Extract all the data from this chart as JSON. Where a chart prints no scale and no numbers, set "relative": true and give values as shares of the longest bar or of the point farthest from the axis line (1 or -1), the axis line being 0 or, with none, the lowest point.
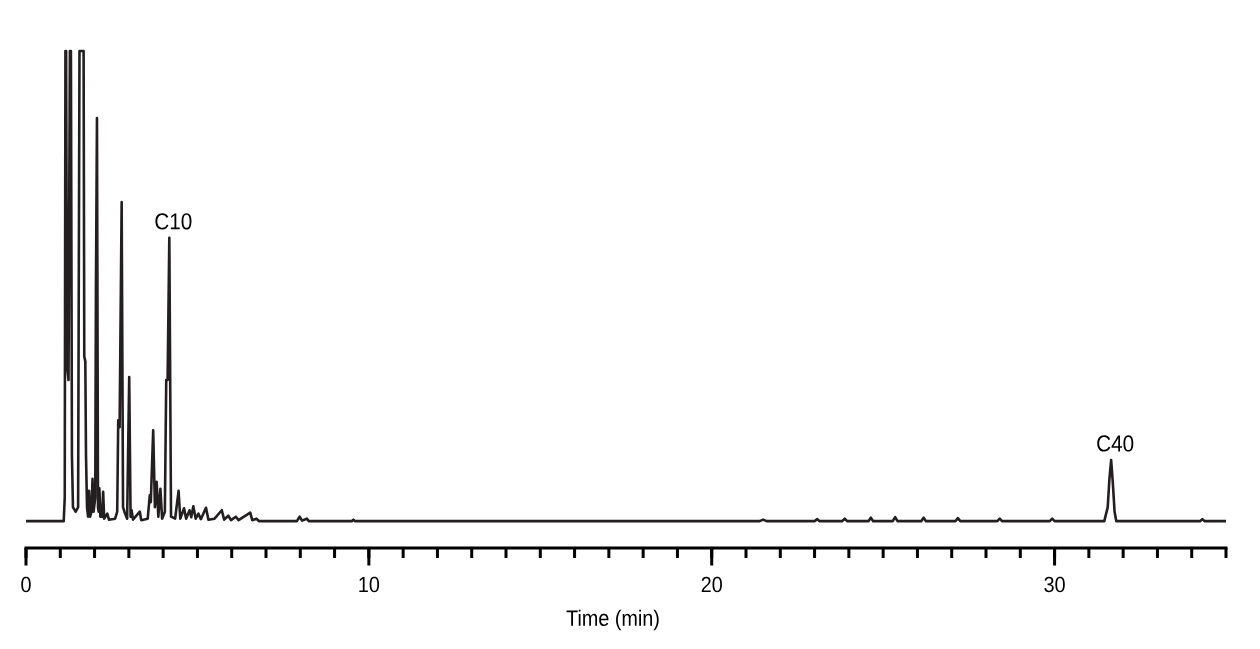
{
  "chart_data": {
    "type": "line",
    "relative": true,
    "xlabel": "Time (min)",
    "xlim": [
      0,
      35
    ],
    "xticks": [
      0,
      {
        "value": 1,
        "label": null
      },
      {
        "value": 2,
        "label": null
      },
      {
        "value": 3,
        "label": null
      },
      {
        "value": 4,
        "label": null
      },
      {
        "value": 5,
        "label": null
      },
      {
        "value": 6,
        "label": null
      },
      {
        "value": 7,
        "label": null
      },
      {
        "value": 8,
        "label": null
      },
      {
        "value": 9,
        "label": null
      },
      10,
      {
        "value": 11,
        "label": null
      },
      {
        "value": 12,
        "label": null
      },
      {
        "value": 13,
        "label": null
      },
      {
        "value": 14,
        "label": null
      },
      {
        "value": 15,
        "label": null
      },
      {
        "value": 16,
        "label": null
      },
      {
        "value": 17,
        "label": null
      },
      {
        "value": 18,
        "label": null
      },
      {
        "value": 19,
        "label": null
      },
      20,
      {
        "value": 21,
        "label": null
      },
      {
        "value": 22,
        "label": null
      },
      {
        "value": 23,
        "label": null
      },
      {
        "value": 24,
        "label": null
      },
      {
        "value": 25,
        "label": null
      },
      {
        "value": 26,
        "label": null
      },
      {
        "value": 27,
        "label": null
      },
      {
        "value": 28,
        "label": null
      },
      {
        "value": 29,
        "label": null
      },
      30,
      {
        "value": 31,
        "label": null
      },
      {
        "value": 32,
        "label": null
      },
      {
        "value": 33,
        "label": null
      },
      {
        "value": 34,
        "label": null
      },
      {
        "value": 35,
        "label": null
      }
    ],
    "x": [
      0,
      1.1,
      1.13,
      1.15,
      1.17,
      1.2,
      1.24,
      1.28,
      1.31,
      1.34,
      1.37,
      1.45,
      1.52,
      1.56,
      1.68,
      1.7,
      1.73,
      1.75,
      1.78,
      1.81,
      1.84,
      1.87,
      1.91,
      1.94,
      1.97,
      2.02,
      2.04,
      2.07,
      2.1,
      2.12,
      2.14,
      2.17,
      2.22,
      2.25,
      2.28,
      2.37,
      2.42,
      2.6,
      2.66,
      2.69,
      2.73,
      2.79,
      2.83,
      2.87,
      2.95,
      3.01,
      3.05,
      3.08,
      3.12,
      3.32,
      3.36,
      3.55,
      3.61,
      3.64,
      3.71,
      3.76,
      3.81,
      3.86,
      3.92,
      3.97,
      4.05,
      4.09,
      4.13,
      4.18,
      4.23,
      4.35,
      4.45,
      4.5,
      4.61,
      4.67,
      4.77,
      4.82,
      4.88,
      4.95,
      5.03,
      5.1,
      5.25,
      5.32,
      5.5,
      5.71,
      5.78,
      5.9,
      5.98,
      6.12,
      6.2,
      6.54,
      6.6,
      6.72,
      6.8,
      7.9,
      7.98,
      8.05,
      8.19,
      8.25,
      9.5,
      9.55,
      9.6,
      21.4,
      21.5,
      21.6,
      23.0,
      23.08,
      23.15,
      23.8,
      23.88,
      23.95,
      24.57,
      24.64,
      24.71,
      25.28,
      25.35,
      25.42,
      26.11,
      26.18,
      26.25,
      27.11,
      27.18,
      27.25,
      28.33,
      28.4,
      28.47,
      29.86,
      29.93,
      30.0,
      31.45,
      31.55,
      31.6,
      31.65,
      31.7,
      31.75,
      31.8,
      34.24,
      34.31,
      34.38,
      35
    ],
    "series": [
      {
        "color": "#231f20",
        "values": [
          0.054,
          0.054,
          0.101,
          1,
          1,
          0.366,
          0.338,
          1,
          1,
          0.186,
          0.082,
          0.073,
          0.082,
          1,
          1,
          0.385,
          0.376,
          0.186,
          0.082,
          0.063,
          0.115,
          0.063,
          0.073,
          0.139,
          0.073,
          0.101,
          0.527,
          0.865,
          0.082,
          0.073,
          0.12,
          0.063,
          0.063,
          0.113,
          0.059,
          0.069,
          0.057,
          0.059,
          0.073,
          0.257,
          0.243,
          0.696,
          0.082,
          0.073,
          0.059,
          0.344,
          0.063,
          0.076,
          0.057,
          0.073,
          0.056,
          0.059,
          0.106,
          0.092,
          0.237,
          0.082,
          0.133,
          0.063,
          0.119,
          0.059,
          0.073,
          0.338,
          0.338,
          0.624,
          0.063,
          0.059,
          0.115,
          0.059,
          0.08,
          0.059,
          0.076,
          0.062,
          0.084,
          0.059,
          0.069,
          0.058,
          0.081,
          0.057,
          0.059,
          0.076,
          0.057,
          0.065,
          0.056,
          0.063,
          0.056,
          0.071,
          0.056,
          0.059,
          0.054,
          0.054,
          0.063,
          0.055,
          0.059,
          0.054,
          0.054,
          0.057,
          0.054,
          0.054,
          0.057,
          0.054,
          0.054,
          0.058,
          0.054,
          0.054,
          0.059,
          0.054,
          0.054,
          0.061,
          0.054,
          0.054,
          0.062,
          0.054,
          0.054,
          0.061,
          0.054,
          0.054,
          0.06,
          0.054,
          0.054,
          0.059,
          0.054,
          0.054,
          0.059,
          0.054,
          0.054,
          0.082,
          0.139,
          0.177,
          0.13,
          0.073,
          0.054,
          0.054,
          0.058,
          0.054,
          0.054
        ]
      }
    ],
    "annotations": [
      {
        "text": "C10",
        "x": 4.18,
        "y": 0.624
      },
      {
        "text": "C40",
        "x": 31.65,
        "y": 0.177
      }
    ]
  }
}
